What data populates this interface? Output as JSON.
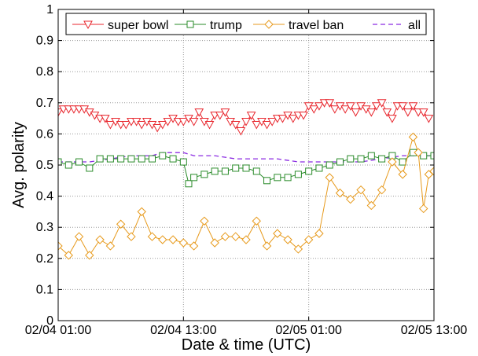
{
  "chart_data": {
    "type": "line",
    "xlabel": "Date & time (UTC)",
    "ylabel": "Avg. polarity",
    "xlim": [
      "2017-02-04 01:00",
      "2017-02-05 13:00"
    ],
    "ylim": [
      0,
      1
    ],
    "x_ticks": [
      "2017-02-04 01:00",
      "2017-02-04 13:00",
      "2017-02-05 01:00",
      "2017-02-05 13:00"
    ],
    "x_tick_labels": [
      "02/04 01:00",
      "02/04 13:00",
      "02/05 01:00",
      "02/05 13:00"
    ],
    "y_ticks": [
      0,
      0.1,
      0.2,
      0.3,
      0.4,
      0.5,
      0.6,
      0.7,
      0.8,
      0.9,
      1
    ],
    "y_tick_labels": [
      "0",
      "0.1",
      "0.2",
      "0.3",
      "0.4",
      "0.5",
      "0.6",
      "0.7",
      "0.8",
      "0.9",
      "1"
    ],
    "grid": true,
    "legend_position": "top",
    "series": [
      {
        "name": "super bowl",
        "color": "#e8262d",
        "marker": "triangle-down",
        "dashed": false,
        "points": [
          [
            "2017-02-04 01:00",
            0.67
          ],
          [
            "2017-02-04 01:30",
            0.68
          ],
          [
            "2017-02-04 02:00",
            0.68
          ],
          [
            "2017-02-04 02:30",
            0.68
          ],
          [
            "2017-02-04 03:00",
            0.68
          ],
          [
            "2017-02-04 03:30",
            0.68
          ],
          [
            "2017-02-04 04:00",
            0.67
          ],
          [
            "2017-02-04 04:30",
            0.66
          ],
          [
            "2017-02-04 05:00",
            0.65
          ],
          [
            "2017-02-04 05:30",
            0.65
          ],
          [
            "2017-02-04 06:00",
            0.63
          ],
          [
            "2017-02-04 06:30",
            0.64
          ],
          [
            "2017-02-04 07:00",
            0.63
          ],
          [
            "2017-02-04 07:30",
            0.63
          ],
          [
            "2017-02-04 08:00",
            0.64
          ],
          [
            "2017-02-04 08:30",
            0.64
          ],
          [
            "2017-02-04 09:00",
            0.63
          ],
          [
            "2017-02-04 09:30",
            0.64
          ],
          [
            "2017-02-04 10:00",
            0.63
          ],
          [
            "2017-02-04 10:30",
            0.62
          ],
          [
            "2017-02-04 11:00",
            0.63
          ],
          [
            "2017-02-04 11:30",
            0.64
          ],
          [
            "2017-02-04 12:00",
            0.65
          ],
          [
            "2017-02-04 12:30",
            0.64
          ],
          [
            "2017-02-04 13:00",
            0.64
          ],
          [
            "2017-02-04 13:30",
            0.65
          ],
          [
            "2017-02-04 14:00",
            0.64
          ],
          [
            "2017-02-04 14:30",
            0.67
          ],
          [
            "2017-02-04 15:00",
            0.64
          ],
          [
            "2017-02-04 15:30",
            0.63
          ],
          [
            "2017-02-04 16:00",
            0.66
          ],
          [
            "2017-02-04 16:30",
            0.66
          ],
          [
            "2017-02-04 17:00",
            0.67
          ],
          [
            "2017-02-04 17:30",
            0.64
          ],
          [
            "2017-02-04 18:00",
            0.63
          ],
          [
            "2017-02-04 18:30",
            0.61
          ],
          [
            "2017-02-04 19:00",
            0.64
          ],
          [
            "2017-02-04 19:30",
            0.66
          ],
          [
            "2017-02-04 20:00",
            0.63
          ],
          [
            "2017-02-04 20:30",
            0.64
          ],
          [
            "2017-02-04 21:00",
            0.63
          ],
          [
            "2017-02-04 21:30",
            0.64
          ],
          [
            "2017-02-04 22:00",
            0.65
          ],
          [
            "2017-02-04 22:30",
            0.65
          ],
          [
            "2017-02-04 23:00",
            0.66
          ],
          [
            "2017-02-04 23:30",
            0.65
          ],
          [
            "2017-02-05 00:00",
            0.66
          ],
          [
            "2017-02-05 00:30",
            0.66
          ],
          [
            "2017-02-05 01:00",
            0.69
          ],
          [
            "2017-02-05 01:30",
            0.68
          ],
          [
            "2017-02-05 02:00",
            0.69
          ],
          [
            "2017-02-05 02:30",
            0.7
          ],
          [
            "2017-02-05 03:00",
            0.7
          ],
          [
            "2017-02-05 03:30",
            0.68
          ],
          [
            "2017-02-05 04:00",
            0.69
          ],
          [
            "2017-02-05 04:30",
            0.68
          ],
          [
            "2017-02-05 05:00",
            0.69
          ],
          [
            "2017-02-05 05:30",
            0.67
          ],
          [
            "2017-02-05 06:00",
            0.69
          ],
          [
            "2017-02-05 06:30",
            0.68
          ],
          [
            "2017-02-05 07:00",
            0.67
          ],
          [
            "2017-02-05 07:30",
            0.69
          ],
          [
            "2017-02-05 08:00",
            0.7
          ],
          [
            "2017-02-05 08:30",
            0.67
          ],
          [
            "2017-02-05 09:00",
            0.65
          ],
          [
            "2017-02-05 09:30",
            0.69
          ],
          [
            "2017-02-05 10:00",
            0.69
          ],
          [
            "2017-02-05 10:30",
            0.67
          ],
          [
            "2017-02-05 11:00",
            0.69
          ],
          [
            "2017-02-05 11:30",
            0.67
          ],
          [
            "2017-02-05 12:00",
            0.67
          ],
          [
            "2017-02-05 12:30",
            0.65
          ]
        ]
      },
      {
        "name": "trump",
        "color": "#2a8b2a",
        "marker": "square",
        "dashed": false,
        "points": [
          [
            "2017-02-04 01:00",
            0.51
          ],
          [
            "2017-02-04 02:00",
            0.5
          ],
          [
            "2017-02-04 03:00",
            0.51
          ],
          [
            "2017-02-04 04:00",
            0.49
          ],
          [
            "2017-02-04 05:00",
            0.52
          ],
          [
            "2017-02-04 06:00",
            0.52
          ],
          [
            "2017-02-04 07:00",
            0.52
          ],
          [
            "2017-02-04 08:00",
            0.52
          ],
          [
            "2017-02-04 09:00",
            0.52
          ],
          [
            "2017-02-04 10:00",
            0.52
          ],
          [
            "2017-02-04 11:00",
            0.53
          ],
          [
            "2017-02-04 12:00",
            0.52
          ],
          [
            "2017-02-04 13:00",
            0.51
          ],
          [
            "2017-02-04 13:30",
            0.44
          ],
          [
            "2017-02-04 14:00",
            0.46
          ],
          [
            "2017-02-04 15:00",
            0.47
          ],
          [
            "2017-02-04 16:00",
            0.48
          ],
          [
            "2017-02-04 17:00",
            0.48
          ],
          [
            "2017-02-04 18:00",
            0.49
          ],
          [
            "2017-02-04 19:00",
            0.49
          ],
          [
            "2017-02-04 20:00",
            0.48
          ],
          [
            "2017-02-04 21:00",
            0.45
          ],
          [
            "2017-02-04 22:00",
            0.46
          ],
          [
            "2017-02-04 23:00",
            0.46
          ],
          [
            "2017-02-05 00:00",
            0.47
          ],
          [
            "2017-02-05 01:00",
            0.48
          ],
          [
            "2017-02-05 02:00",
            0.49
          ],
          [
            "2017-02-05 03:00",
            0.5
          ],
          [
            "2017-02-05 04:00",
            0.51
          ],
          [
            "2017-02-05 05:00",
            0.52
          ],
          [
            "2017-02-05 06:00",
            0.52
          ],
          [
            "2017-02-05 07:00",
            0.53
          ],
          [
            "2017-02-05 08:00",
            0.52
          ],
          [
            "2017-02-05 09:00",
            0.53
          ],
          [
            "2017-02-05 10:00",
            0.51
          ],
          [
            "2017-02-05 11:00",
            0.54
          ],
          [
            "2017-02-05 12:00",
            0.53
          ],
          [
            "2017-02-05 13:00",
            0.53
          ]
        ]
      },
      {
        "name": "travel ban",
        "color": "#e79a1c",
        "marker": "diamond",
        "dashed": false,
        "points": [
          [
            "2017-02-04 01:00",
            0.24
          ],
          [
            "2017-02-04 02:00",
            0.21
          ],
          [
            "2017-02-04 03:00",
            0.27
          ],
          [
            "2017-02-04 04:00",
            0.21
          ],
          [
            "2017-02-04 05:00",
            0.26
          ],
          [
            "2017-02-04 06:00",
            0.24
          ],
          [
            "2017-02-04 07:00",
            0.31
          ],
          [
            "2017-02-04 08:00",
            0.27
          ],
          [
            "2017-02-04 09:00",
            0.35
          ],
          [
            "2017-02-04 10:00",
            0.27
          ],
          [
            "2017-02-04 11:00",
            0.26
          ],
          [
            "2017-02-04 12:00",
            0.26
          ],
          [
            "2017-02-04 13:00",
            0.25
          ],
          [
            "2017-02-04 14:00",
            0.24
          ],
          [
            "2017-02-04 15:00",
            0.32
          ],
          [
            "2017-02-04 16:00",
            0.25
          ],
          [
            "2017-02-04 17:00",
            0.27
          ],
          [
            "2017-02-04 18:00",
            0.27
          ],
          [
            "2017-02-04 19:00",
            0.26
          ],
          [
            "2017-02-04 20:00",
            0.32
          ],
          [
            "2017-02-04 21:00",
            0.24
          ],
          [
            "2017-02-04 22:00",
            0.28
          ],
          [
            "2017-02-04 23:00",
            0.26
          ],
          [
            "2017-02-05 00:00",
            0.23
          ],
          [
            "2017-02-05 01:00",
            0.26
          ],
          [
            "2017-02-05 02:00",
            0.28
          ],
          [
            "2017-02-05 03:00",
            0.46
          ],
          [
            "2017-02-05 04:00",
            0.41
          ],
          [
            "2017-02-05 05:00",
            0.39
          ],
          [
            "2017-02-05 06:00",
            0.42
          ],
          [
            "2017-02-05 07:00",
            0.37
          ],
          [
            "2017-02-05 08:00",
            0.42
          ],
          [
            "2017-02-05 09:00",
            0.51
          ],
          [
            "2017-02-05 10:00",
            0.47
          ],
          [
            "2017-02-05 11:00",
            0.59
          ],
          [
            "2017-02-05 11:30",
            0.54
          ],
          [
            "2017-02-05 12:00",
            0.36
          ],
          [
            "2017-02-05 12:30",
            0.47
          ],
          [
            "2017-02-05 13:00",
            0.48
          ],
          [
            "2017-02-05 13:30",
            0.5
          ],
          [
            "2017-02-05 14:00",
            0.51
          ]
        ]
      },
      {
        "name": "all",
        "color": "#8b2be2",
        "marker": "none",
        "dashed": true,
        "points": [
          [
            "2017-02-04 01:00",
            0.51
          ],
          [
            "2017-02-04 02:00",
            0.51
          ],
          [
            "2017-02-04 04:00",
            0.51
          ],
          [
            "2017-02-04 06:00",
            0.52
          ],
          [
            "2017-02-04 08:00",
            0.53
          ],
          [
            "2017-02-04 10:00",
            0.53
          ],
          [
            "2017-02-04 11:00",
            0.54
          ],
          [
            "2017-02-04 12:00",
            0.54
          ],
          [
            "2017-02-04 13:00",
            0.54
          ],
          [
            "2017-02-04 14:00",
            0.53
          ],
          [
            "2017-02-04 16:00",
            0.53
          ],
          [
            "2017-02-04 18:00",
            0.52
          ],
          [
            "2017-02-04 20:00",
            0.52
          ],
          [
            "2017-02-04 22:00",
            0.52
          ],
          [
            "2017-02-05 00:00",
            0.51
          ],
          [
            "2017-02-05 02:00",
            0.51
          ],
          [
            "2017-02-05 04:00",
            0.51
          ],
          [
            "2017-02-05 06:00",
            0.51
          ],
          [
            "2017-02-05 08:00",
            0.52
          ],
          [
            "2017-02-05 10:00",
            0.53
          ],
          [
            "2017-02-05 12:00",
            0.53
          ],
          [
            "2017-02-05 13:00",
            0.53
          ]
        ]
      }
    ]
  }
}
